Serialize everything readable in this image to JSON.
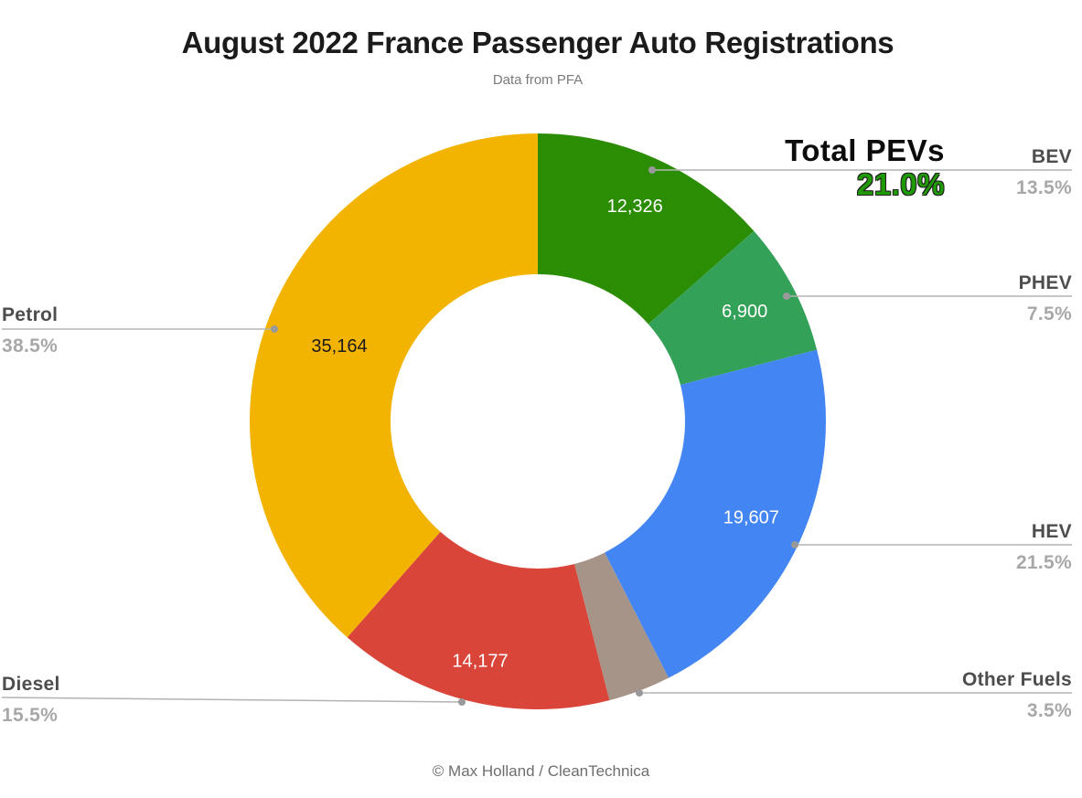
{
  "chart_data": {
    "type": "pie",
    "subtype": "donut",
    "title": "August 2022 France Passenger Auto Registrations",
    "subtitle": "Data from PFA",
    "credit": "© Max Holland / CleanTechnica",
    "hole_radius_ratio": 0.51,
    "start_angle_deg": 0,
    "direction": "clockwise",
    "legend_position": "none",
    "labels_position": "outside",
    "slices": [
      {
        "label": "BEV",
        "value": 12326,
        "value_label": "12,326",
        "pct": 13.5,
        "pct_label": "13.5%",
        "color": "#2a8d03",
        "value_label_color": "#ffffff"
      },
      {
        "label": "PHEV",
        "value": 6900,
        "value_label": "6,900",
        "pct": 7.5,
        "pct_label": "7.5%",
        "color": "#34a159",
        "value_label_color": "#ffffff"
      },
      {
        "label": "HEV",
        "value": 19607,
        "value_label": "19,607",
        "pct": 21.5,
        "pct_label": "21.5%",
        "color": "#4385f3",
        "value_label_color": "#ffffff"
      },
      {
        "label": "Other Fuels",
        "value": null,
        "value_label": "",
        "pct": 3.5,
        "pct_label": "3.5%",
        "color": "#a79488",
        "value_label_color": "#ffffff"
      },
      {
        "label": "Diesel",
        "value": 14177,
        "value_label": "14,177",
        "pct": 15.5,
        "pct_label": "15.5%",
        "color": "#da453a",
        "value_label_color": "#ffffff"
      },
      {
        "label": "Petrol",
        "value": 35164,
        "value_label": "35,164",
        "pct": 38.5,
        "pct_label": "38.5%",
        "color": "#f3b301",
        "value_label_color": "#1a1a1a"
      }
    ],
    "annotation": {
      "label": "Total PEVs",
      "value": "21.0%",
      "color": "#1f9906"
    }
  },
  "colors": {
    "background": "#ffffff",
    "title": "#1b1b1b",
    "subtitle": "#7a7a7a",
    "category_label": "#4d4d4d",
    "percent_label": "#a8a8a8",
    "leader_line": "#b3b3b3",
    "leader_dot": "#999999",
    "credit": "#6e6e6e"
  }
}
